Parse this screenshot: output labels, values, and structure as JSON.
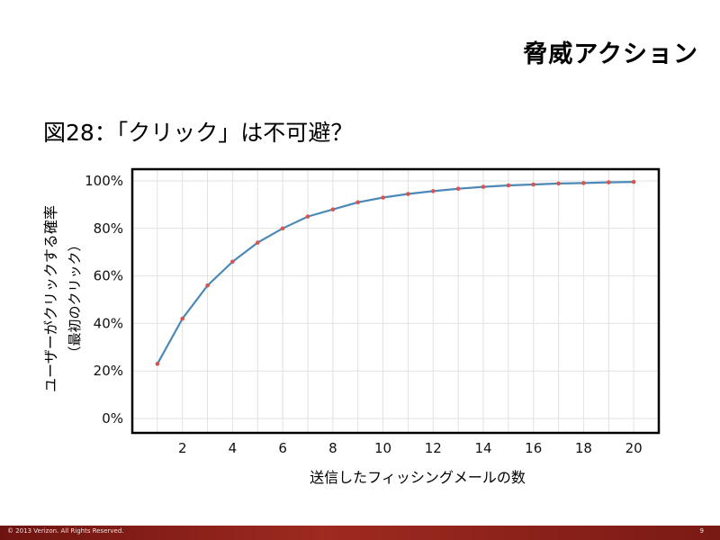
{
  "slide": {
    "header_title": "脅威アクション",
    "figure_title": "図28：「クリック」は不可避？"
  },
  "footer": {
    "copyright": "© 2013 Verizon. All Rights Reserved.",
    "page_number": "9"
  },
  "colors": {
    "line": "#4a89b8",
    "marker": "#d9534f",
    "frame": "#000000",
    "grid": "#e2e2e2",
    "footer": "#8b1e17"
  },
  "chart_data": {
    "type": "line",
    "xlabel": "送信したフィッシングメールの数",
    "ylabel": "ユーザーがクリックする確率",
    "ylabel_sub": "（最初のクリック）",
    "x": [
      1,
      2,
      3,
      4,
      5,
      6,
      7,
      8,
      9,
      10,
      11,
      12,
      13,
      14,
      15,
      16,
      17,
      18,
      19,
      20
    ],
    "values": [
      23,
      42,
      56,
      66,
      74,
      80,
      85,
      88,
      91,
      93,
      94.5,
      95.7,
      96.7,
      97.5,
      98.1,
      98.5,
      98.9,
      99.1,
      99.4,
      99.6
    ],
    "xlim": [
      0,
      21
    ],
    "ylim": [
      0,
      100
    ],
    "x_ticks": [
      2,
      4,
      6,
      8,
      10,
      12,
      14,
      16,
      18,
      20
    ],
    "x_tick_labels": [
      "2",
      "4",
      "6",
      "8",
      "10",
      "12",
      "14",
      "16",
      "18",
      "20"
    ],
    "y_ticks": [
      0,
      20,
      40,
      60,
      80,
      100
    ],
    "y_tick_labels": [
      "0%",
      "20%",
      "40%",
      "60%",
      "80%",
      "100%"
    ],
    "grid": true
  }
}
